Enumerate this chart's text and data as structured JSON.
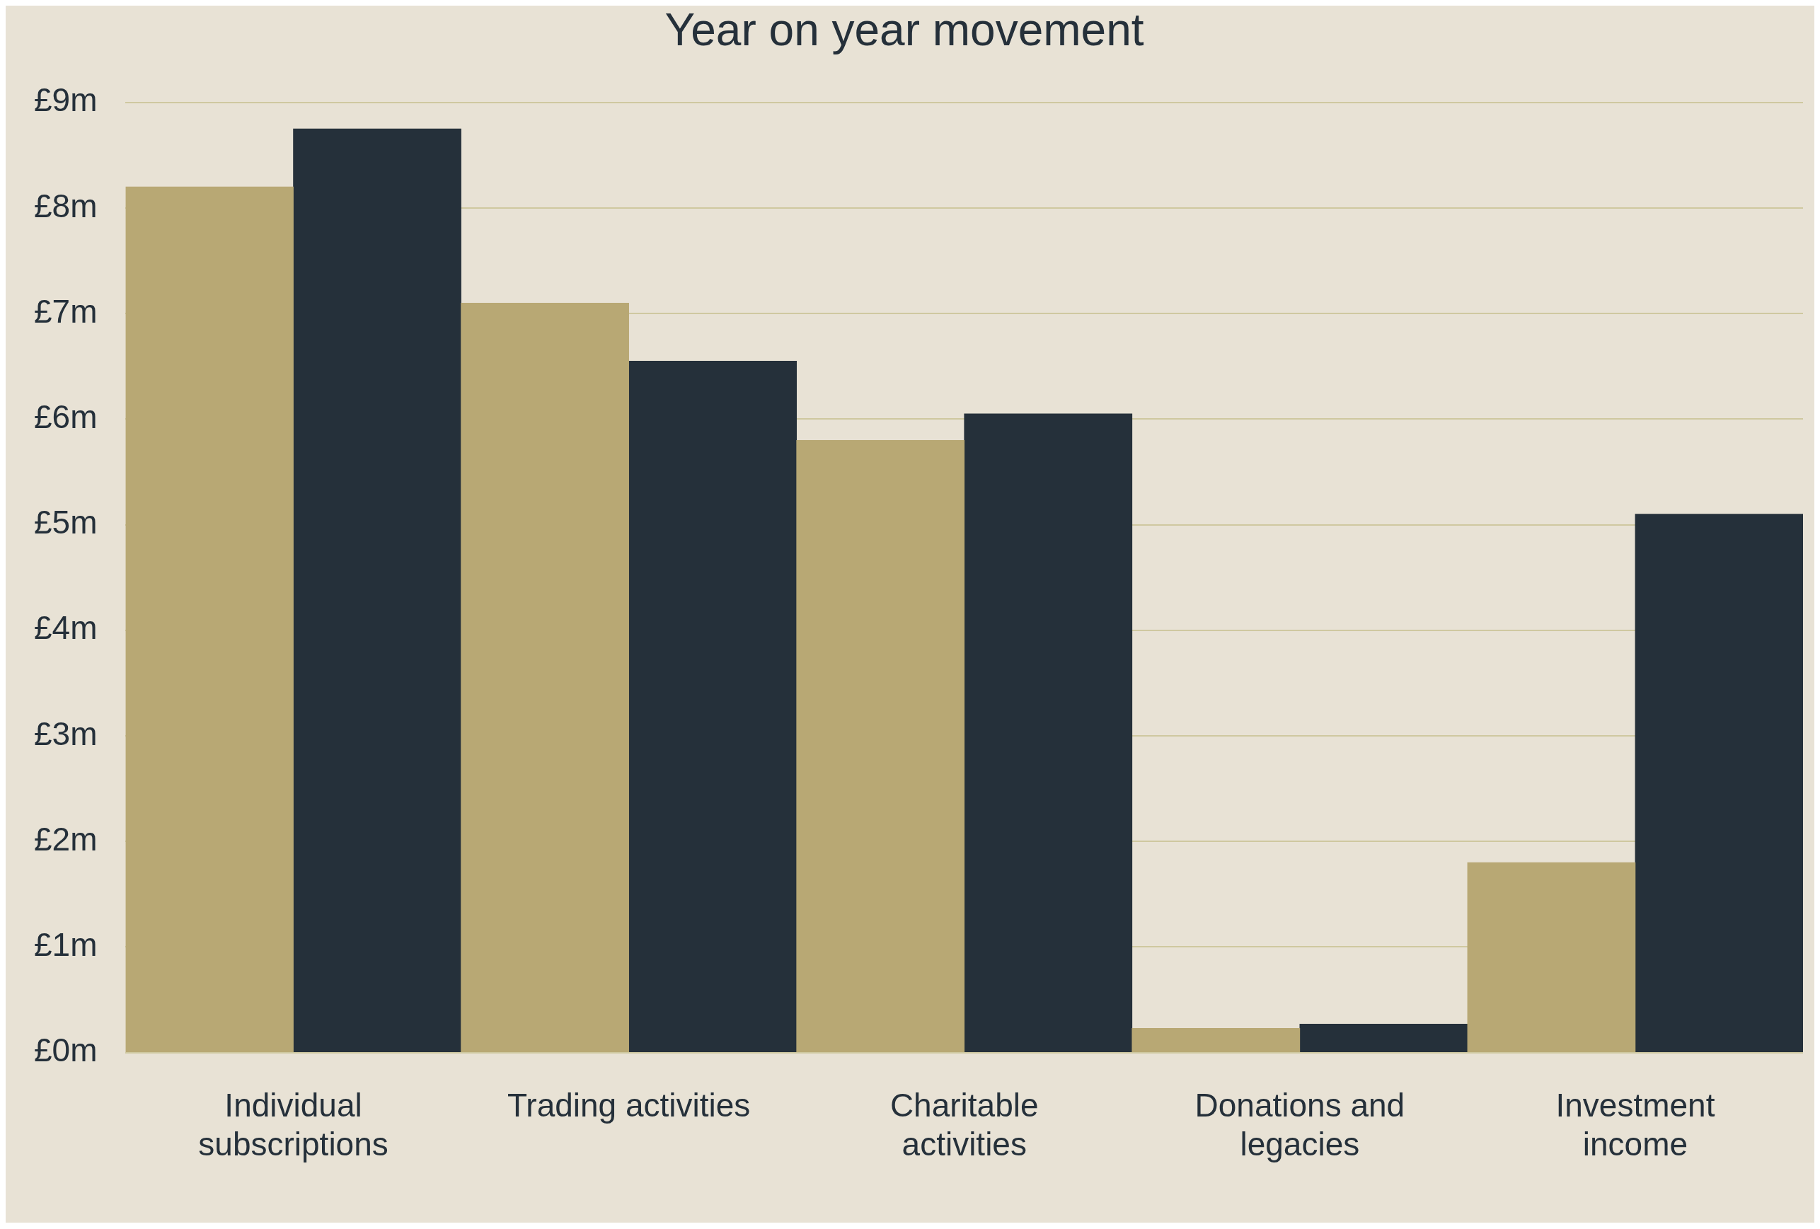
{
  "chart_data": {
    "type": "bar",
    "title": "Year on year movement",
    "categories": [
      "Individual subscriptions",
      "Trading activities",
      "Charitable activities",
      "Donations and legacies",
      "Investment income"
    ],
    "series": [
      {
        "color": "#b8a874",
        "values": [
          8.2,
          7.1,
          5.8,
          0.23,
          1.8
        ]
      },
      {
        "color": "#25303a",
        "values": [
          8.75,
          6.55,
          6.05,
          0.27,
          5.1
        ]
      }
    ],
    "ylim": [
      0,
      9
    ],
    "yticks": [
      {
        "value": 0,
        "label": "£0m"
      },
      {
        "value": 1,
        "label": "£1m"
      },
      {
        "value": 2,
        "label": "£2m"
      },
      {
        "value": 3,
        "label": "£3m"
      },
      {
        "value": 4,
        "label": "£4m"
      },
      {
        "value": 5,
        "label": "£5m"
      },
      {
        "value": 6,
        "label": "£6m"
      },
      {
        "value": 7,
        "label": "£7m"
      },
      {
        "value": 8,
        "label": "£8m"
      },
      {
        "value": 9,
        "label": "£9m"
      }
    ],
    "grid": "y",
    "legend": false
  }
}
